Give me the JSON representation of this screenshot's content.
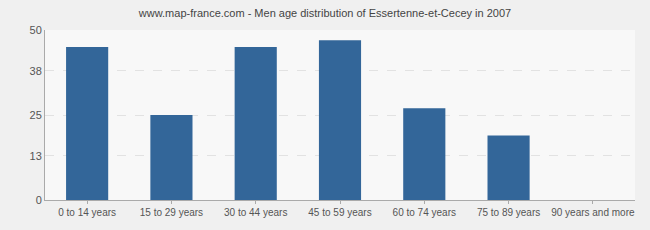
{
  "chart_data": {
    "type": "bar",
    "title": "www.map-france.com - Men age distribution of Essertenne-et-Cecey in 2007",
    "categories": [
      "0 to 14 years",
      "15 to 29 years",
      "30 to 44 years",
      "45 to 59 years",
      "60 to 74 years",
      "75 to 89 years",
      "90 years and more"
    ],
    "values": [
      45,
      25,
      45,
      47,
      27,
      19,
      0
    ],
    "color": "#336699",
    "ylim": [
      0,
      50
    ],
    "yticks": [
      0,
      13,
      25,
      38,
      50
    ],
    "grid": true
  }
}
